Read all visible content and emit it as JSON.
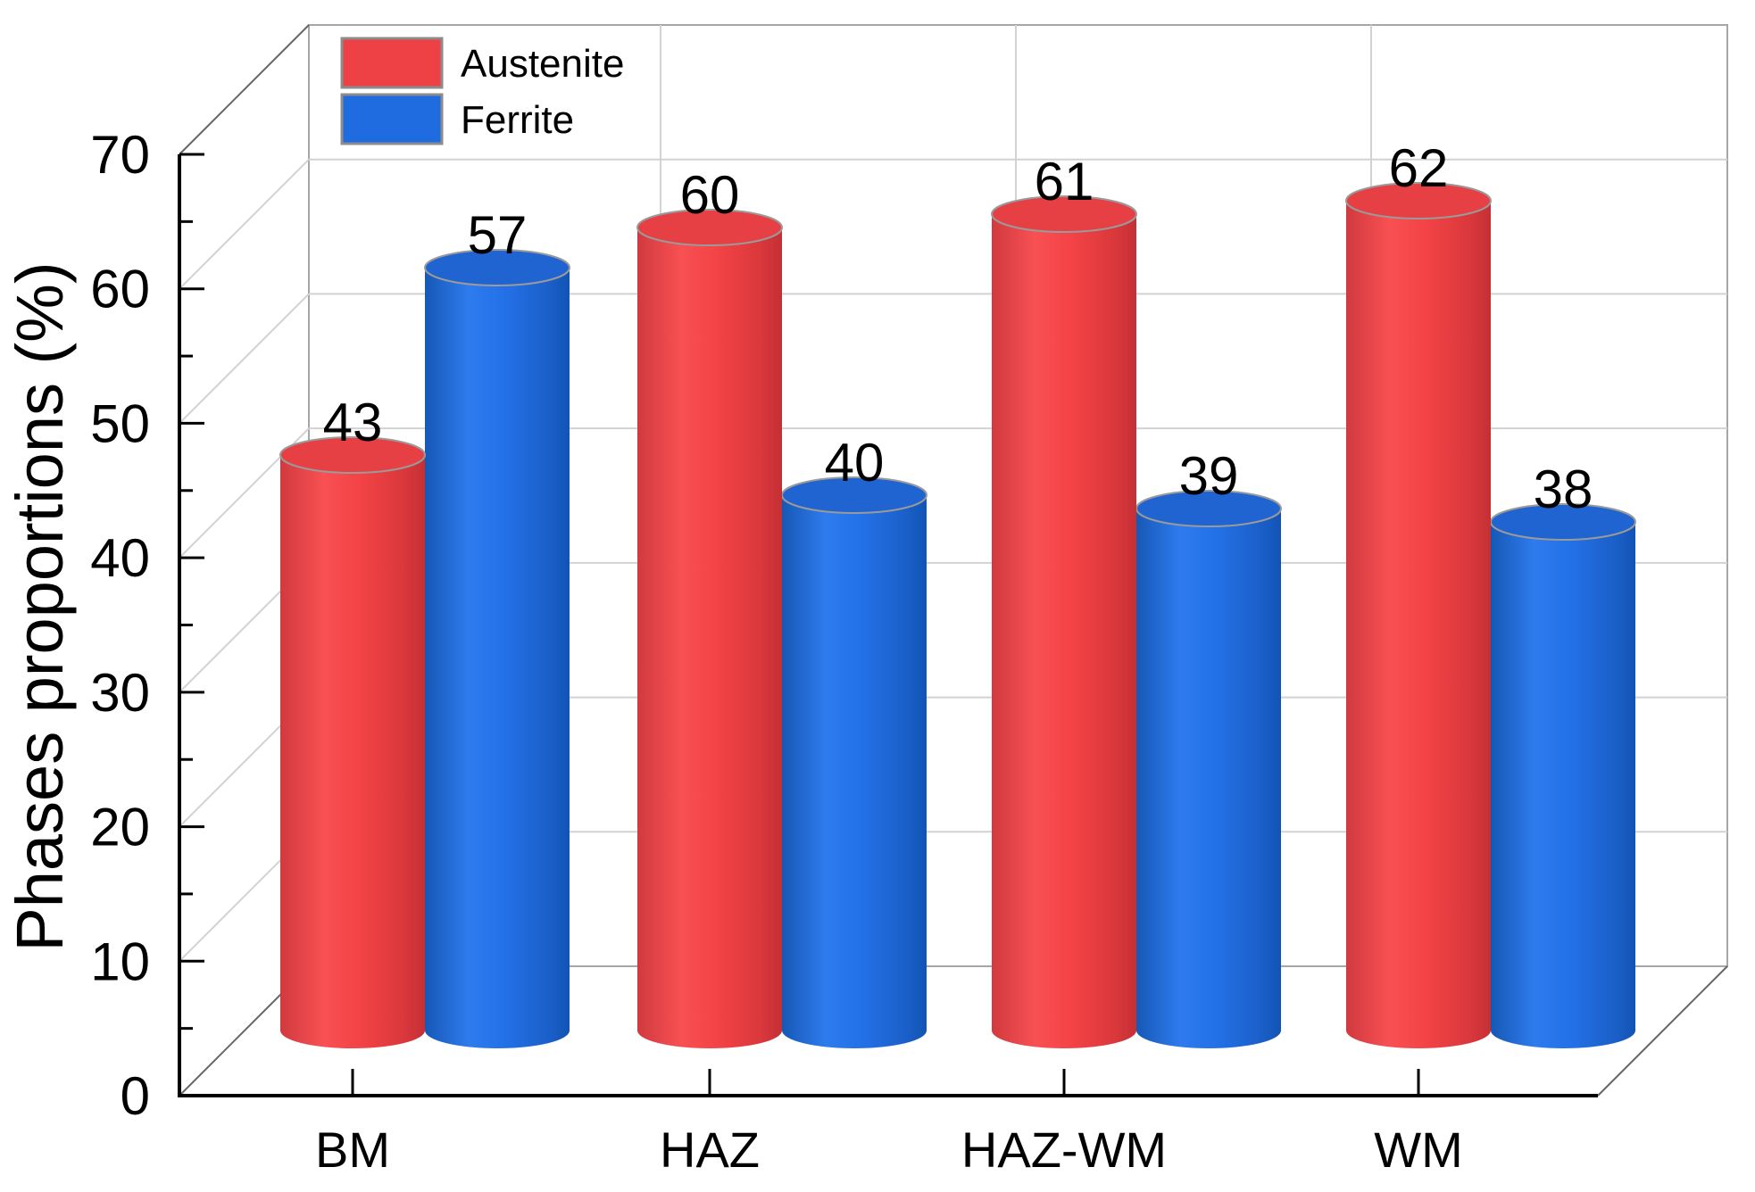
{
  "chart_data": {
    "type": "bar",
    "style": "3d-cylinder",
    "title": "",
    "xlabel": "",
    "ylabel": "Phases proportions (%)",
    "categories": [
      "BM",
      "HAZ",
      "HAZ-WM",
      "WM"
    ],
    "series": [
      {
        "name": "Austenite",
        "color": "#ee4146",
        "values": [
          43,
          60,
          61,
          62
        ]
      },
      {
        "name": "Ferrite",
        "color": "#1f6be0",
        "values": [
          57,
          40,
          39,
          38
        ]
      }
    ],
    "value_labels": {
      "Austenite": [
        "43",
        "60",
        "61",
        "62"
      ],
      "Ferrite": [
        "57",
        "40",
        "39",
        "38"
      ]
    },
    "ylim": [
      0,
      70
    ],
    "y_major_tick": 10,
    "y_minor_tick": 5,
    "y_tick_labels": [
      "0",
      "10",
      "20",
      "30",
      "40",
      "50",
      "60",
      "70"
    ],
    "grid": true,
    "legend_position": "top-left"
  }
}
